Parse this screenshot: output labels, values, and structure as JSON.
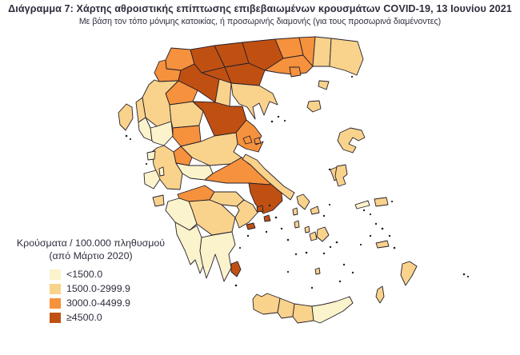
{
  "header": {
    "title": "Διάγραμμα 7: Χάρτης αθροιστικής επίπτωσης επιβεβαιωμένων κρουσμάτων COVID-19, 13 Ιουνίου 2021",
    "subtitle": "Με βάση τον τόπο μόνιμης κατοικίας, ή προσωρινής διαμονής (για τους προσωρινά διαμένοντες)"
  },
  "legend": {
    "title_line1": "Κρούσματα / 100.000 πληθυσμού",
    "title_line2": "(από Μάρτιο 2020)",
    "classes": [
      {
        "id": 1,
        "label": "<1500.0",
        "color": "#FBF3CB"
      },
      {
        "id": 2,
        "label": "1500.0-2999.9",
        "color": "#F9D28C"
      },
      {
        "id": 3,
        "label": "3000.0-4499.9",
        "color": "#F6913D"
      },
      {
        "id": 4,
        "label": "≥4500.0",
        "color": "#C05012"
      }
    ]
  },
  "map": {
    "border_color": "#241f2b",
    "regions": [
      {
        "id": "florina",
        "name": "Φλώρινα",
        "class": 3
      },
      {
        "id": "pella",
        "name": "Πέλλα",
        "class": 4
      },
      {
        "id": "kilkis",
        "name": "Κιλκίς",
        "class": 4
      },
      {
        "id": "serres",
        "name": "Σέρρες",
        "class": 4
      },
      {
        "id": "drama",
        "name": "Δράμα",
        "class": 3
      },
      {
        "id": "kavala",
        "name": "Καβάλα",
        "class": 3
      },
      {
        "id": "xanthi",
        "name": "Ξάνθη",
        "class": 3
      },
      {
        "id": "rodopi",
        "name": "Ροδόπη",
        "class": 2
      },
      {
        "id": "evros",
        "name": "Έβρος",
        "class": 2
      },
      {
        "id": "kastoria",
        "name": "Καστοριά",
        "class": 3
      },
      {
        "id": "kozani",
        "name": "Κοζάνη",
        "class": 4
      },
      {
        "id": "imathia",
        "name": "Ημαθία",
        "class": 4
      },
      {
        "id": "thessaloniki",
        "name": "Θεσσαλονίκη",
        "class": 4
      },
      {
        "id": "pieria",
        "name": "Πιερία",
        "class": 2
      },
      {
        "id": "grevena",
        "name": "Γρεβενά",
        "class": 3
      },
      {
        "id": "chalkidiki",
        "name": "Χαλκιδική",
        "class": 2
      },
      {
        "id": "thasos",
        "name": "Θάσος",
        "class": 3
      },
      {
        "id": "samothraki",
        "name": "Σαμοθράκη",
        "class": 2
      },
      {
        "id": "limnos",
        "name": "Λήμνος",
        "class": 2
      },
      {
        "id": "ioannina",
        "name": "Ιωάννινα",
        "class": 2
      },
      {
        "id": "thesprotia",
        "name": "Θεσπρωτία",
        "class": 2
      },
      {
        "id": "preveza",
        "name": "Πρέβεζα",
        "class": 1
      },
      {
        "id": "arta",
        "name": "Άρτα",
        "class": 1
      },
      {
        "id": "trikala",
        "name": "Τρίκαλα",
        "class": 2
      },
      {
        "id": "karditsa",
        "name": "Καρδίτσα",
        "class": 3
      },
      {
        "id": "larissa",
        "name": "Λάρισα",
        "class": 4
      },
      {
        "id": "magnisia",
        "name": "Μαγνησία",
        "class": 3
      },
      {
        "id": "sporades1",
        "name": "Σποράδες (Σκιάθος)",
        "class": 3
      },
      {
        "id": "sporades2",
        "name": "Σποράδες (Σκόπελος)",
        "class": 3
      },
      {
        "id": "fthiotida",
        "name": "Φθιώτιδα",
        "class": 2
      },
      {
        "id": "evrytania",
        "name": "Ευρυτανία",
        "class": 3
      },
      {
        "id": "aitoloakarnania",
        "name": "Αιτωλοακαρνανία",
        "class": 2
      },
      {
        "id": "fokida",
        "name": "Φωκίδα",
        "class": 1
      },
      {
        "id": "voiotia",
        "name": "Βοιωτία",
        "class": 3
      },
      {
        "id": "attiki",
        "name": "Αττική",
        "class": 4
      },
      {
        "id": "salamina",
        "name": "Σαλαμίνα (Αττική)",
        "class": 4
      },
      {
        "id": "aigina",
        "name": "Αίγινα (Αττική)",
        "class": 4
      },
      {
        "id": "ydra",
        "name": "Ύδρα (Αττική)",
        "class": 4
      },
      {
        "id": "evia",
        "name": "Εύβοια",
        "class": 2
      },
      {
        "id": "skyros",
        "name": "Σκύρος",
        "class": 2
      },
      {
        "id": "achaia",
        "name": "Αχαΐα",
        "class": 3
      },
      {
        "id": "korinthia",
        "name": "Κορινθία",
        "class": 2
      },
      {
        "id": "argolida",
        "name": "Αργολίδα",
        "class": 2
      },
      {
        "id": "arkadia",
        "name": "Αρκαδία",
        "class": 2
      },
      {
        "id": "ileia",
        "name": "Ηλεία",
        "class": 1
      },
      {
        "id": "messinia",
        "name": "Μεσσηνία",
        "class": 1
      },
      {
        "id": "lakonia",
        "name": "Λακωνία",
        "class": 1
      },
      {
        "id": "kerkyra",
        "name": "Κέρκυρα",
        "class": 2
      },
      {
        "id": "lefkada",
        "name": "Λευκάδα",
        "class": 1
      },
      {
        "id": "kefalonia",
        "name": "Κεφαλονιά",
        "class": 1
      },
      {
        "id": "ithaki",
        "name": "Ιθάκη",
        "class": 1
      },
      {
        "id": "zakynthos",
        "name": "Ζάκυνθος",
        "class": 2
      },
      {
        "id": "chania",
        "name": "Χανιά",
        "class": 2
      },
      {
        "id": "rethymno",
        "name": "Ρέθυμνο",
        "class": 2
      },
      {
        "id": "irakleio",
        "name": "Ηράκλειο",
        "class": 2
      },
      {
        "id": "lasithi",
        "name": "Λασίθι",
        "class": 1
      },
      {
        "id": "lesvos",
        "name": "Λέσβος",
        "class": 2
      },
      {
        "id": "chios",
        "name": "Χίος",
        "class": 2
      },
      {
        "id": "samos",
        "name": "Σάμος",
        "class": 2
      },
      {
        "id": "ikaria",
        "name": "Ικαρία",
        "class": 1
      },
      {
        "id": "andros",
        "name": "Άνδρος",
        "class": 2
      },
      {
        "id": "tinos",
        "name": "Τήνος",
        "class": 2
      },
      {
        "id": "kea",
        "name": "Κέα",
        "class": 2
      },
      {
        "id": "kythnos",
        "name": "Κύθνος",
        "class": 2
      },
      {
        "id": "syros",
        "name": "Σύρος",
        "class": 2
      },
      {
        "id": "paros",
        "name": "Πάρος",
        "class": 2
      },
      {
        "id": "naxos",
        "name": "Νάξος",
        "class": 2
      },
      {
        "id": "milos",
        "name": "Μήλος",
        "class": 4
      },
      {
        "id": "santorini",
        "name": "Σαντορίνη",
        "class": 2
      },
      {
        "id": "kos",
        "name": "Κως",
        "class": 2
      },
      {
        "id": "rodos",
        "name": "Ρόδος",
        "class": 2
      },
      {
        "id": "karpathos",
        "name": "Κάρπαθος",
        "class": 2
      }
    ]
  }
}
